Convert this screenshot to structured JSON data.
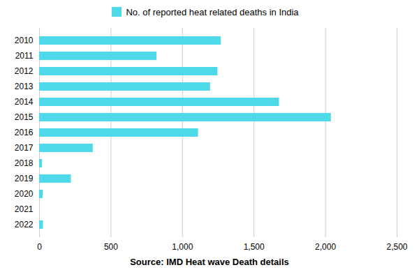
{
  "chart_data": {
    "type": "bar",
    "orientation": "horizontal",
    "x_label": "Source: IMD Heat wave Death details",
    "categories": [
      "2010",
      "2011",
      "2012",
      "2013",
      "2014",
      "2015",
      "2016",
      "2017",
      "2018",
      "2019",
      "2020",
      "2021",
      "2022"
    ],
    "series": [
      {
        "name": "No. of reported heat related deaths in India",
        "color": "#4DD9E8",
        "values": [
          1270,
          820,
          1247,
          1195,
          1677,
          2040,
          1111,
          375,
          20,
          222,
          25,
          0,
          27
        ]
      }
    ],
    "xlim": [
      0,
      2500
    ],
    "xticks": [
      0,
      500,
      {
        "value": 1000,
        "label": "1,000"
      },
      {
        "value": 1500,
        "label": "1,500"
      },
      {
        "value": 2000,
        "label": "2,000"
      },
      {
        "value": 2500,
        "label": "2,500"
      }
    ],
    "grid": true,
    "legend": "top"
  }
}
